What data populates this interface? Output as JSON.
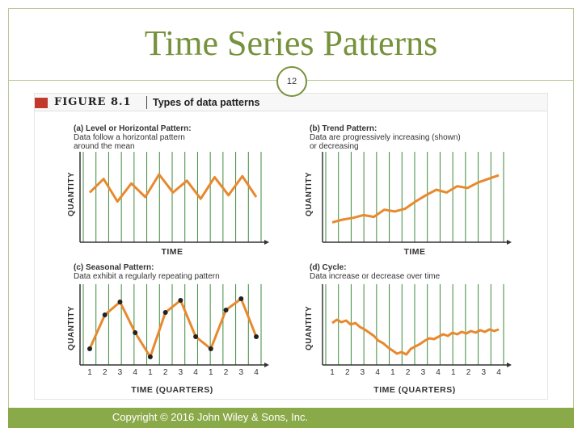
{
  "slide": {
    "title": "Time Series Patterns",
    "page_number": "12",
    "footer": "Copyright © 2016 John Wiley & Sons, Inc."
  },
  "figure": {
    "label": "FIGURE 8.1",
    "title": "Types of data patterns"
  },
  "colors": {
    "title": "#76923c",
    "line": "#e8892e",
    "grid": "#3d8a3d",
    "footer": "#8aaa4a",
    "marker": "#222222"
  },
  "chart_data": [
    {
      "type": "line",
      "panel_label": "(a) Level or Horizontal Pattern:",
      "description": [
        "Data follow a horizontal pattern",
        "around the mean"
      ],
      "xlabel": "TIME",
      "ylabel": "QUANTITY",
      "grid": true,
      "x_ticks": [],
      "series": [
        {
          "values": [
            55,
            70,
            45,
            65,
            50,
            75,
            55,
            68,
            48,
            72,
            52,
            73,
            50
          ]
        }
      ],
      "ylim": [
        0,
        100
      ],
      "markers": false
    },
    {
      "type": "line",
      "panel_label": "(b) Trend Pattern:",
      "description": [
        "Data are progressively increasing (shown)",
        "or decreasing"
      ],
      "xlabel": "TIME",
      "ylabel": "QUANTITY",
      "grid": true,
      "x_ticks": [],
      "series": [
        {
          "values": [
            22,
            25,
            27,
            30,
            28,
            36,
            34,
            37,
            45,
            52,
            58,
            55,
            62,
            60,
            66,
            70,
            74
          ]
        }
      ],
      "ylim": [
        0,
        100
      ],
      "markers": false
    },
    {
      "type": "line",
      "panel_label": "(c) Seasonal Pattern:",
      "description": [
        "Data exhibit a regularly repeating pattern"
      ],
      "xlabel": "TIME (QUARTERS)",
      "ylabel": "QUANTITY",
      "grid": true,
      "x_ticks": [
        "1",
        "2",
        "3",
        "4",
        "1",
        "2",
        "3",
        "4",
        "1",
        "2",
        "3",
        "4"
      ],
      "series": [
        {
          "values": [
            20,
            62,
            78,
            40,
            10,
            65,
            80,
            35,
            20,
            68,
            82,
            35
          ]
        }
      ],
      "ylim": [
        0,
        100
      ],
      "markers": true
    },
    {
      "type": "line",
      "panel_label": "(d) Cycle:",
      "description": [
        "Data increase or decrease over time"
      ],
      "xlabel": "TIME (QUARTERS)",
      "ylabel": "QUANTITY",
      "grid": true,
      "x_ticks": [
        "1",
        "2",
        "3",
        "4",
        "1",
        "2",
        "3",
        "4",
        "1",
        "2",
        "3",
        "4"
      ],
      "series": [
        {
          "values": [
            52,
            56,
            53,
            55,
            50,
            52,
            47,
            44,
            40,
            36,
            30,
            27,
            22,
            18,
            14,
            16,
            13,
            20,
            23,
            26,
            30,
            33,
            32,
            35,
            38,
            36,
            40,
            38,
            41,
            39,
            42,
            40,
            43,
            41,
            44,
            42,
            44
          ]
        }
      ],
      "ylim": [
        0,
        100
      ],
      "markers": false
    }
  ]
}
